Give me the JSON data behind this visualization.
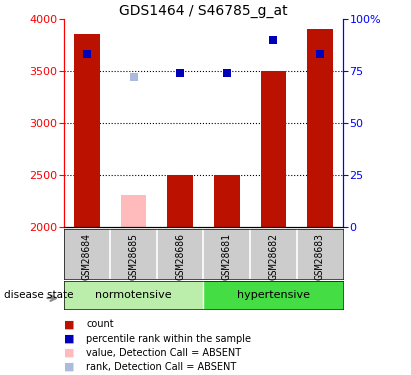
{
  "title": "GDS1464 / S46785_g_at",
  "samples": [
    "GSM28684",
    "GSM28685",
    "GSM28686",
    "GSM28681",
    "GSM28682",
    "GSM28683"
  ],
  "count_values": [
    3850,
    2310,
    2500,
    2500,
    3500,
    3900
  ],
  "count_absent": [
    false,
    true,
    false,
    false,
    false,
    false
  ],
  "percentile_values": [
    83,
    null,
    74,
    74,
    90,
    83
  ],
  "percentile_absent": [
    false,
    false,
    false,
    false,
    false,
    false
  ],
  "absent_rank_values": [
    null,
    3440,
    null,
    null,
    null,
    null
  ],
  "ylim_left": [
    2000,
    4000
  ],
  "ylim_right": [
    0,
    100
  ],
  "yticks_left": [
    2000,
    2500,
    3000,
    3500,
    4000
  ],
  "yticks_right": [
    0,
    25,
    50,
    75,
    100
  ],
  "yticklabels_right": [
    "0",
    "25",
    "50",
    "75",
    "100%"
  ],
  "bar_color_present": "#bb1100",
  "bar_color_absent": "#ffbbbb",
  "marker_color_present": "#0000bb",
  "marker_color_absent": "#aabbdd",
  "bg_color_plot": "#ffffff",
  "bg_color_label_norm": "#bbeeaa",
  "bg_color_label_hyp": "#44dd44",
  "bg_color_sample": "#cccccc",
  "bar_width": 0.55,
  "marker_size": 6,
  "title_fontsize": 10,
  "tick_fontsize": 8,
  "label_fontsize": 8,
  "legend_items": [
    {
      "color": "#bb1100",
      "label": "count"
    },
    {
      "color": "#0000bb",
      "label": "percentile rank within the sample"
    },
    {
      "color": "#ffbbbb",
      "label": "value, Detection Call = ABSENT"
    },
    {
      "color": "#aabbdd",
      "label": "rank, Detection Call = ABSENT"
    }
  ]
}
